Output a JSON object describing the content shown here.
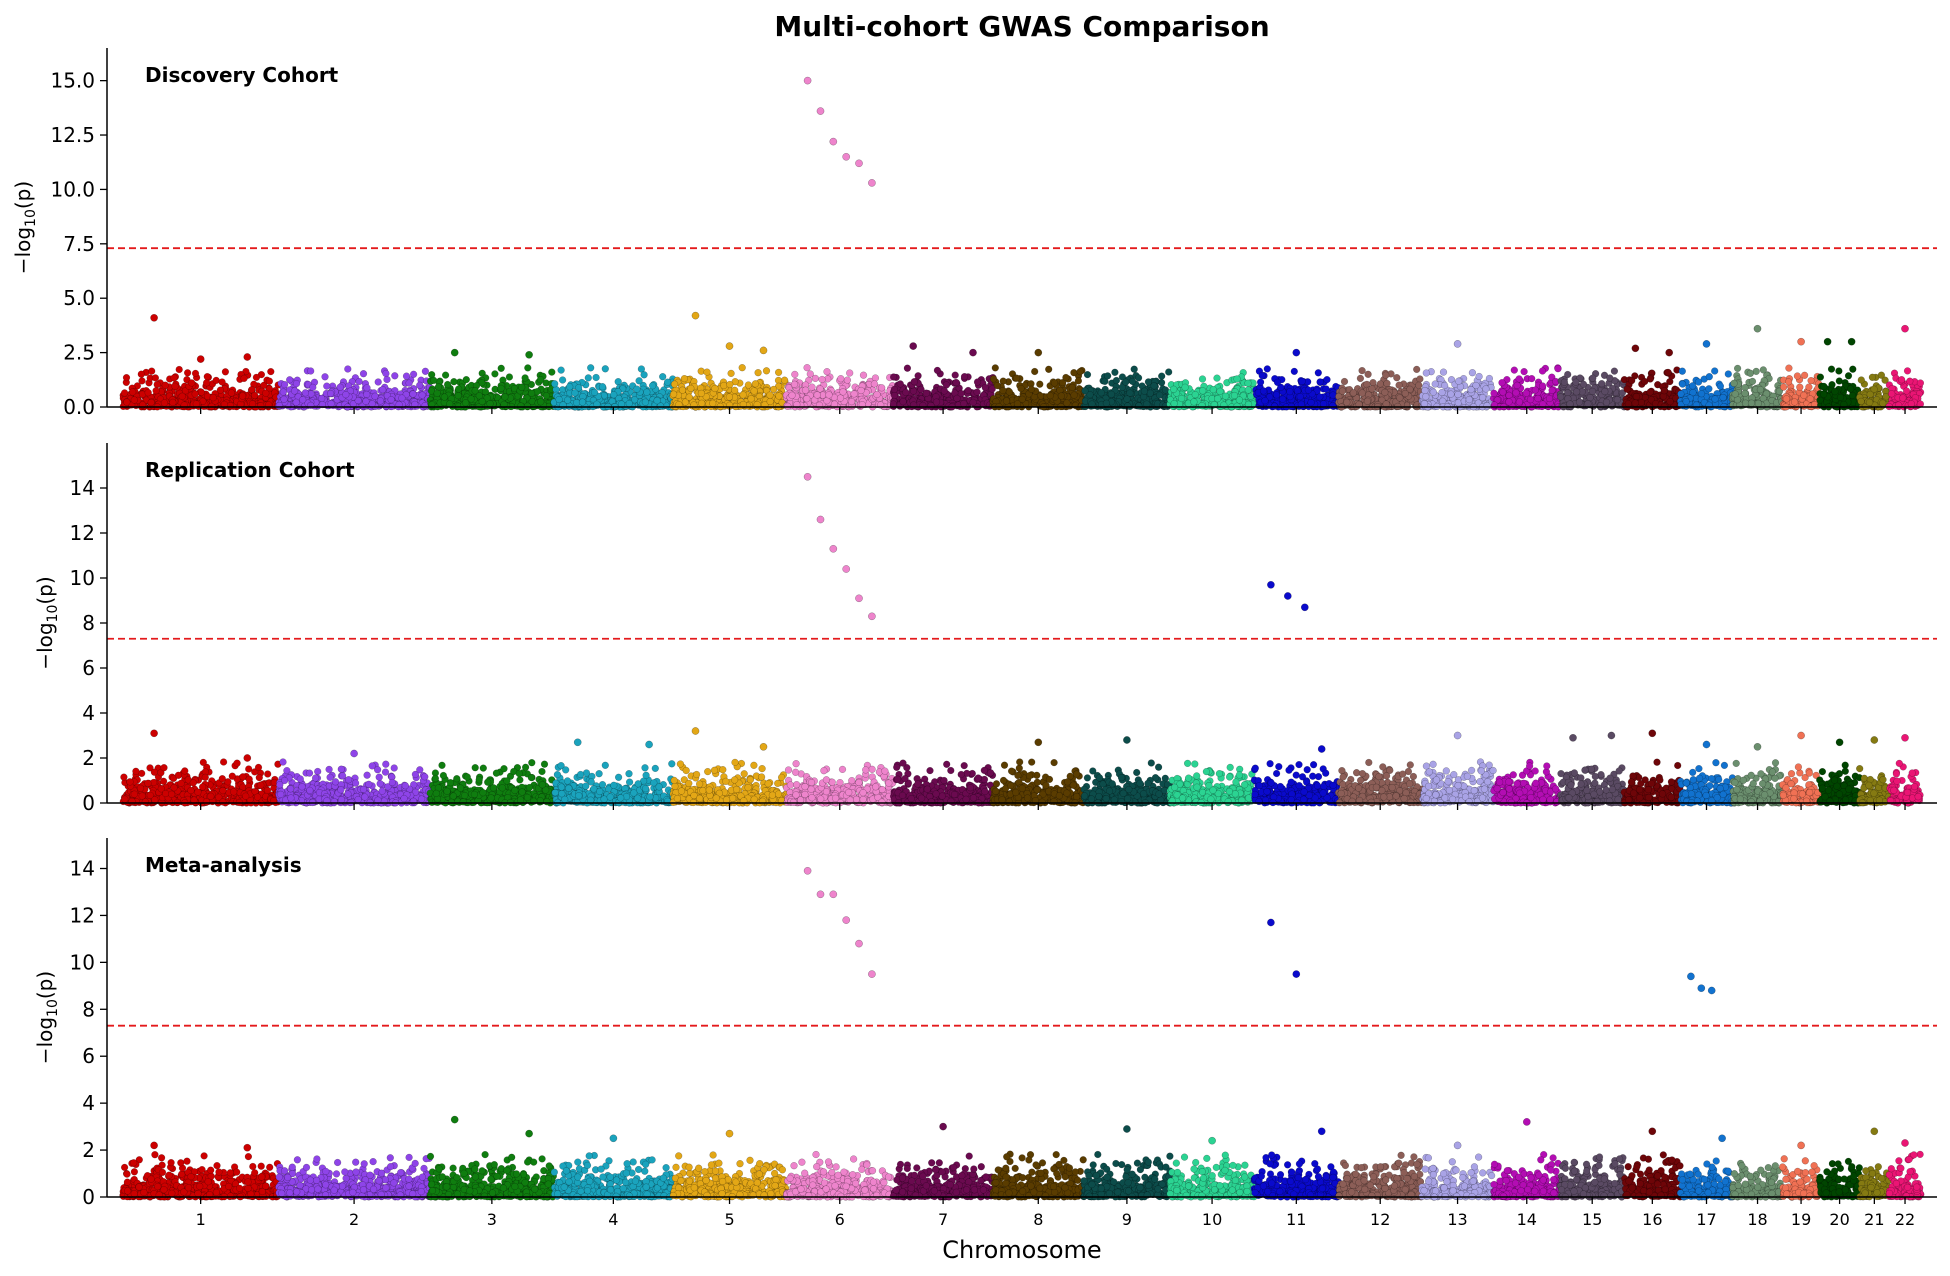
{
  "chart_data": {
    "type": "scatter",
    "title": "Multi-cohort GWAS Comparison",
    "xlabel": "Chromosome",
    "ylabel": "-log10(p)",
    "ylabel_parts": {
      "prefix": "−log",
      "sub": "10",
      "suffix": "(p)"
    },
    "threshold": 7.3,
    "threshold_color": "#e41a1c",
    "chromosomes": [
      "1",
      "2",
      "3",
      "4",
      "5",
      "6",
      "7",
      "8",
      "9",
      "10",
      "11",
      "12",
      "13",
      "14",
      "15",
      "16",
      "17",
      "18",
      "19",
      "20",
      "21",
      "22"
    ],
    "chromosome_colors": [
      "#cc0000",
      "#8e44e8",
      "#0f7d0f",
      "#1aa3bd",
      "#e3a716",
      "#ee84cc",
      "#6a0a4f",
      "#5a3c00",
      "#0c4c4a",
      "#2bd392",
      "#0a0acc",
      "#8c5e57",
      "#a9a3e6",
      "#b30db3",
      "#5a4a63",
      "#6e0508",
      "#1172cf",
      "#6b8f6e",
      "#f07154",
      "#004500",
      "#857a12",
      "#ea1574"
    ],
    "panels": [
      {
        "label": "Discovery Cohort",
        "ylim": [
          0,
          16.5
        ],
        "yticks": [
          0,
          2.5,
          5,
          7.5,
          10,
          12.5,
          15
        ],
        "ytick_labels": [
          "0.0",
          "2.5",
          "5.0",
          "7.5",
          "10.0",
          "12.5",
          "15.0"
        ],
        "peaks": {
          "1": [
            4.1,
            2.2,
            2.3
          ],
          "3": [
            2.5,
            2.4
          ],
          "5": [
            4.2,
            2.8,
            2.6
          ],
          "6": [
            15.0,
            13.6,
            12.2,
            11.5,
            11.2,
            10.3
          ],
          "7": [
            2.8,
            2.5
          ],
          "8": [
            2.5
          ],
          "11": [
            2.5
          ],
          "13": [
            2.9
          ],
          "16": [
            2.7,
            2.5
          ],
          "17": [
            2.9
          ],
          "18": [
            3.6
          ],
          "19": [
            3.0
          ],
          "20": [
            3.0,
            3.0
          ],
          "22": [
            3.6
          ]
        }
      },
      {
        "label": "Replication Cohort",
        "ylim": [
          0,
          16.0
        ],
        "yticks": [
          0,
          2,
          4,
          6,
          8,
          10,
          12,
          14
        ],
        "ytick_labels": [
          "0",
          "2",
          "4",
          "6",
          "8",
          "10",
          "12",
          "14"
        ],
        "peaks": {
          "1": [
            3.1,
            2.0
          ],
          "2": [
            2.2
          ],
          "4": [
            2.7,
            2.6
          ],
          "5": [
            3.2,
            2.5
          ],
          "6": [
            14.5,
            12.6,
            11.3,
            10.4,
            9.1,
            8.3
          ],
          "8": [
            2.7
          ],
          "9": [
            2.8
          ],
          "11": [
            9.7,
            9.2,
            8.7,
            2.4
          ],
          "13": [
            3.0
          ],
          "15": [
            2.9,
            3.0
          ],
          "16": [
            3.1
          ],
          "17": [
            2.6
          ],
          "18": [
            2.5
          ],
          "19": [
            3.0
          ],
          "20": [
            2.7
          ],
          "21": [
            2.8
          ],
          "22": [
            2.9
          ]
        }
      },
      {
        "label": "Meta-analysis",
        "ylim": [
          0,
          15.3
        ],
        "yticks": [
          0,
          2,
          4,
          6,
          8,
          10,
          12,
          14
        ],
        "ytick_labels": [
          "0",
          "2",
          "4",
          "6",
          "8",
          "10",
          "12",
          "14"
        ],
        "peaks": {
          "1": [
            2.2,
            2.1
          ],
          "3": [
            3.3,
            2.7
          ],
          "4": [
            2.5
          ],
          "5": [
            2.7
          ],
          "6": [
            13.9,
            12.9,
            12.9,
            11.8,
            10.8,
            9.5
          ],
          "7": [
            3.0
          ],
          "9": [
            2.9
          ],
          "10": [
            2.4
          ],
          "11": [
            11.7,
            9.5,
            2.8
          ],
          "13": [
            2.2
          ],
          "14": [
            3.2
          ],
          "16": [
            2.8
          ],
          "17": [
            9.4,
            8.9,
            8.8,
            2.5
          ],
          "19": [
            2.2
          ],
          "21": [
            2.8
          ],
          "22": [
            2.3
          ]
        }
      }
    ]
  }
}
